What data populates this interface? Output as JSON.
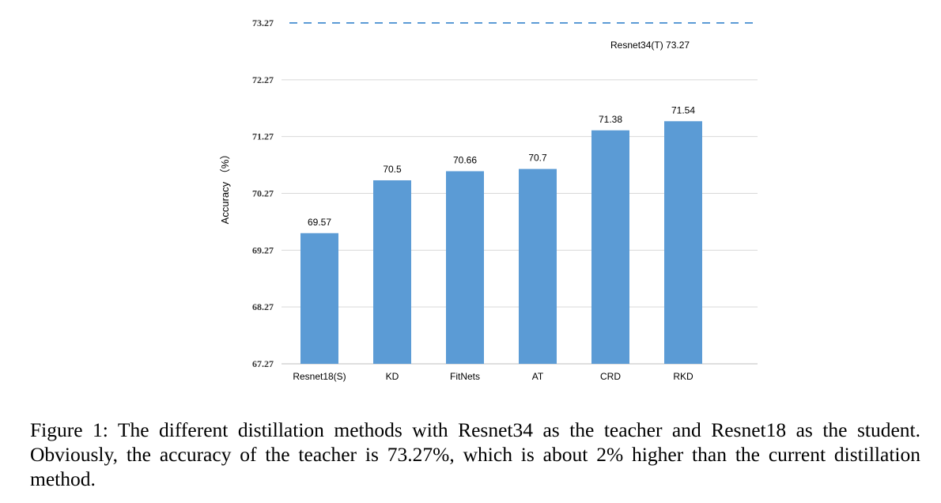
{
  "chart_data": {
    "type": "bar",
    "categories": [
      "Resnet18(S)",
      "KD",
      "FitNets",
      "AT",
      "CRD",
      "RKD"
    ],
    "values": [
      69.57,
      70.5,
      70.66,
      70.7,
      71.38,
      71.54
    ],
    "value_labels": [
      "69.57",
      "70.5",
      "70.66",
      "70.7",
      "71.38",
      "71.54"
    ],
    "ylabel": "Accuracy （%）",
    "ylim": [
      67.27,
      73.27
    ],
    "yticks": [
      "67.27",
      "68.27",
      "69.27",
      "70.27",
      "71.27",
      "72.27",
      "73.27"
    ],
    "grid": true,
    "bar_color": "#5B9BD5",
    "reference_line": {
      "value": 73.27,
      "label": "Resnet34(T)  73.27",
      "color": "#5B9BD5"
    }
  },
  "caption": "Figure 1:  The different distillation methods with Resnet34 as the teacher and Resnet18 as the student. Obviously, the accuracy of the teacher is 73.27%, which is about 2% higher than the current distillation method."
}
